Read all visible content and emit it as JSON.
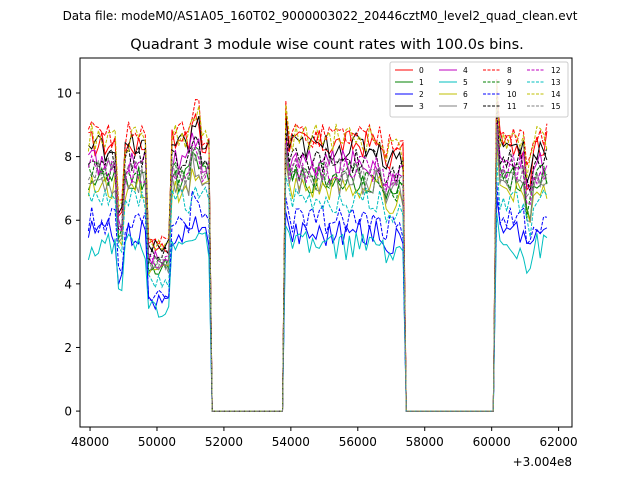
{
  "chart_data": {
    "type": "line",
    "suptitle": "Data file: modeM0/AS1A05_160T02_9000003022_20446cztM0_level2_quad_clean.evt",
    "title": "Quadrant 3 module wise count rates with 100.0s bins.",
    "xlabel": "",
    "ylabel": "",
    "x_offset_label": "+3.004e8",
    "xlim": [
      47700,
      62400
    ],
    "ylim": [
      -0.5,
      11.1
    ],
    "xticks": [
      48000,
      50000,
      52000,
      54000,
      56000,
      58000,
      60000,
      62000
    ],
    "yticks": [
      0,
      2,
      4,
      6,
      8,
      10
    ],
    "xtick_labels": [
      "48000",
      "50000",
      "52000",
      "54000",
      "56000",
      "58000",
      "60000",
      "62000"
    ],
    "ytick_labels": [
      "0",
      "2",
      "4",
      "6",
      "8",
      "10"
    ],
    "legend_position": "top-right",
    "gaps": [
      [
        51650,
        53750
      ],
      [
        57450,
        60050
      ]
    ],
    "segments": [
      [
        47950,
        51550
      ],
      [
        53850,
        57350
      ],
      [
        60150,
        61650
      ]
    ],
    "series": [
      {
        "name": "0",
        "color": "#ff0000",
        "dash": "solid",
        "level": 8.4
      },
      {
        "name": "1",
        "color": "#008000",
        "dash": "solid",
        "level": 7.3
      },
      {
        "name": "2",
        "color": "#0000ff",
        "dash": "solid",
        "level": 5.6
      },
      {
        "name": "3",
        "color": "#000000",
        "dash": "solid",
        "level": 8.3
      },
      {
        "name": "4",
        "color": "#bf00bf",
        "dash": "solid",
        "level": 7.8
      },
      {
        "name": "5",
        "color": "#00bfbf",
        "dash": "solid",
        "level": 5.2
      },
      {
        "name": "6",
        "color": "#bfbf00",
        "dash": "solid",
        "level": 7.0
      },
      {
        "name": "7",
        "color": "#808080",
        "dash": "solid",
        "level": 7.2
      },
      {
        "name": "8",
        "color": "#ff0000",
        "dash": "dashed",
        "level": 8.7
      },
      {
        "name": "9",
        "color": "#008000",
        "dash": "dashed",
        "level": 7.4
      },
      {
        "name": "10",
        "color": "#0000ff",
        "dash": "dashed",
        "level": 6.0
      },
      {
        "name": "11",
        "color": "#000000",
        "dash": "dashed",
        "level": 7.9
      },
      {
        "name": "12",
        "color": "#bf00bf",
        "dash": "dashed",
        "level": 7.6
      },
      {
        "name": "13",
        "color": "#00bfbf",
        "dash": "dashed",
        "level": 6.6
      },
      {
        "name": "14",
        "color": "#bfbf00",
        "dash": "dashed",
        "level": 8.6
      },
      {
        "name": "15",
        "color": "#808080",
        "dash": "dashed",
        "level": 7.5
      }
    ]
  }
}
